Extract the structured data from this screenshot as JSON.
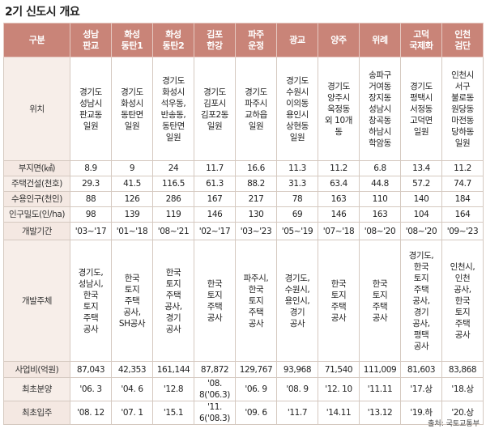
{
  "title": "2기 신도시 개요",
  "source": "출처: 국토교통부",
  "header": {
    "label": "구분",
    "columns": [
      "성남\n판교",
      "화성\n동탄1",
      "화성\n동탄2",
      "김포\n한강",
      "파주\n운정",
      "광교",
      "양주",
      "위례",
      "고덕\n국제화",
      "인천\n검단"
    ]
  },
  "rows": [
    {
      "label": "위치",
      "cells": [
        "경기도\n성남시\n판교동\n일원",
        "경기도\n화성시\n동탄면\n일원",
        "경기도\n화성시\n석우동,\n반송동,\n동탄면\n일원",
        "경기도\n김포시\n김포2동\n일원",
        "경기도\n파주시\n교하읍\n일원",
        "경기도\n수원시\n이의동\n용인시\n상현동\n일원",
        "경기도\n양주시\n옥정동\n외 10개\n동",
        "송파구\n거여동\n장지동\n성남시\n창곡동\n하남시\n학암동",
        "경기도\n평택시\n서정동\n고덕면\n일원",
        "인천시\n서구\n불로동\n원당동\n마전동\n당하동\n일원"
      ]
    },
    {
      "label": "부지면(㎢)",
      "cells": [
        "8.9",
        "9",
        "24",
        "11.7",
        "16.6",
        "11.3",
        "11.2",
        "6.8",
        "13.4",
        "11.2"
      ]
    },
    {
      "label": "주택건설(천호)",
      "cells": [
        "29.3",
        "41.5",
        "116.5",
        "61.3",
        "88.2",
        "31.3",
        "63.4",
        "44.8",
        "57.2",
        "74.7"
      ]
    },
    {
      "label": "수용인구(천인)",
      "cells": [
        "88",
        "126",
        "286",
        "167",
        "217",
        "78",
        "163",
        "110",
        "140",
        "184"
      ]
    },
    {
      "label": "인구밀도(인/ha)",
      "cells": [
        "98",
        "139",
        "119",
        "146",
        "130",
        "69",
        "146",
        "163",
        "104",
        "164"
      ]
    },
    {
      "label": "개발기간",
      "cells": [
        "'03~'17",
        "'01~'18",
        "'08~'21",
        "'02~'17",
        "'03~'23",
        "'05~'19",
        "'07~'18",
        "'08~'20",
        "'08~'20",
        "'09~'23"
      ]
    },
    {
      "label": "개발주체",
      "cells": [
        "경기도,\n성남시,\n한국\n토지\n주택\n공사",
        "한국\n토지\n주택\n공사,\nSH공사",
        "한국\n토지\n주택\n공사,\n경기\n공사",
        "한국\n토지\n주택\n공사",
        "파주시,\n한국\n토지\n주택\n공사",
        "경기도,\n수원시,\n용인시,\n경기\n공사",
        "한국\n토지\n주택\n공사",
        "한국\n토지\n주택\n공사",
        "경기도,\n한국\n토지\n주택\n공사,\n경기\n공사,\n평택\n공사",
        "인천시,\n인천\n공사,\n한국\n토지\n주택\n공사"
      ]
    },
    {
      "label": "사업비(억원)",
      "cells": [
        "87,043",
        "42,353",
        "161,144",
        "87,872",
        "129,767",
        "93,968",
        "71,540",
        "111,009",
        "81,603",
        "83,868"
      ]
    },
    {
      "label": "최초분양",
      "cells": [
        "'06. 3",
        "'04. 6",
        "'12.8",
        "'08.\n8('06.3)",
        "'06. 9",
        "'08. 9",
        "'12. 10",
        "'11.11",
        "'17.상",
        "'18.상"
      ]
    },
    {
      "label": "최초입주",
      "cells": [
        "'08. 12",
        "'07. 1",
        "'15.1",
        "'11.\n6('08.3)",
        "'09. 6",
        "'11.7",
        "'14.11",
        "'13.12",
        "'19.하",
        "'20.상"
      ]
    }
  ]
}
